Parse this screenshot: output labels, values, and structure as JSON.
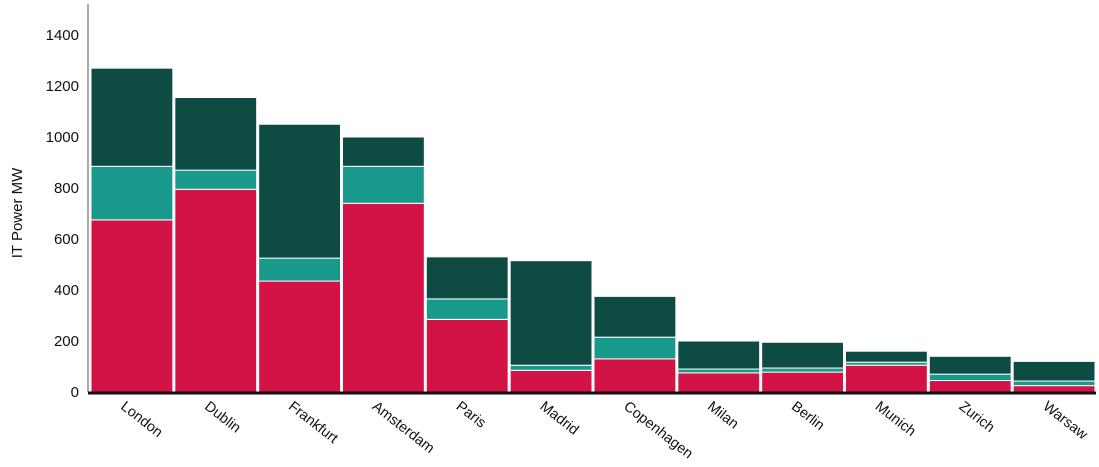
{
  "chart_data": {
    "type": "bar",
    "stacked": true,
    "title": "",
    "xlabel": "",
    "ylabel": "IT Power MW",
    "legend": "none",
    "grid": false,
    "ylim": [
      0,
      1520
    ],
    "y_ticks": [
      0,
      200,
      400,
      600,
      800,
      1000,
      1200,
      1400
    ],
    "categories": [
      "London",
      "Dublin",
      "Frankfurt",
      "Amsterdam",
      "Paris",
      "Madrid",
      "Copenhagen",
      "Milan",
      "Berlin",
      "Munich",
      "Zurich",
      "Warsaw"
    ],
    "series": [
      {
        "name": "segment-bottom",
        "color": "#d31245",
        "values": [
          675,
          795,
          435,
          740,
          285,
          85,
          130,
          75,
          78,
          105,
          45,
          25
        ]
      },
      {
        "name": "segment-middle",
        "color": "#18998b",
        "values": [
          210,
          75,
          90,
          145,
          80,
          20,
          85,
          15,
          16,
          12,
          25,
          18
        ]
      },
      {
        "name": "segment-top",
        "color": "#0d4b43",
        "values": [
          385,
          285,
          525,
          115,
          165,
          410,
          160,
          110,
          101,
          43,
          70,
          77
        ]
      }
    ],
    "colors": {
      "axis_line": "#555555",
      "baseline": "#101010",
      "text": "#111111",
      "background": "#ffffff"
    }
  }
}
